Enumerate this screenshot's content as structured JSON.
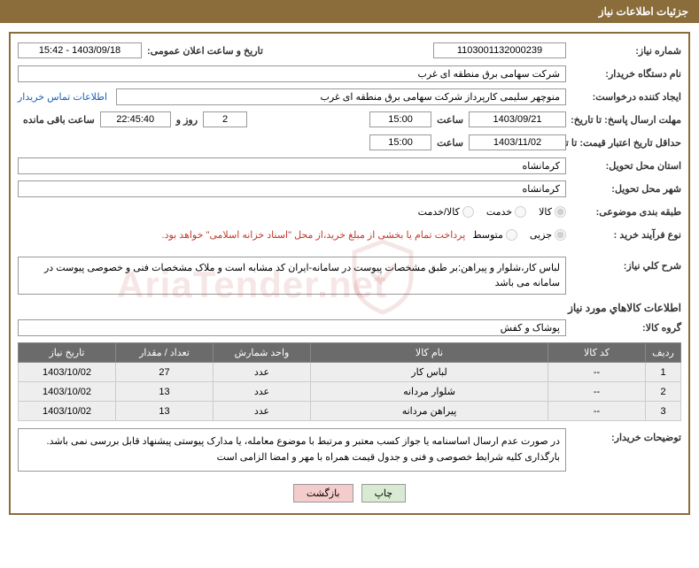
{
  "header": {
    "title": "جزئیات اطلاعات نیاز"
  },
  "fields": {
    "need_number_label": "شماره نیاز:",
    "need_number": "1103001132000239",
    "announce_date_label": "تاریخ و ساعت اعلان عمومی:",
    "announce_date": "1403/09/18 - 15:42",
    "buyer_org_label": "نام دستگاه خریدار:",
    "buyer_org": "شرکت سهامی برق منطقه ای غرب",
    "requester_label": "ایجاد کننده درخواست:",
    "requester": "منوچهر  سلیمی کارپرداز شرکت سهامی برق منطقه ای غرب",
    "contact_link": "اطلاعات تماس خریدار",
    "reply_deadline_label": "مهلت ارسال پاسخ: تا تاریخ:",
    "reply_date": "1403/09/21",
    "time_label": "ساعت",
    "reply_time": "15:00",
    "days_remain": "2",
    "days_remain_label": "روز و",
    "hours_remain": "22:45:40",
    "hours_remain_label": "ساعت باقی مانده",
    "price_validity_label": "حداقل تاریخ اعتبار قیمت: تا تاریخ:",
    "price_validity_date": "1403/11/02",
    "price_validity_time": "15:00",
    "delivery_province_label": "استان محل تحویل:",
    "delivery_province": "کرمانشاه",
    "delivery_city_label": "شهر محل تحویل:",
    "delivery_city": "کرمانشاه",
    "category_label": "طبقه بندی موضوعی:",
    "radio_goods": "کالا",
    "radio_service": "خدمت",
    "radio_goods_service": "کالا/خدمت",
    "purchase_type_label": "نوع فرآیند خرید :",
    "radio_minor": "جزیی",
    "radio_medium": "متوسط",
    "purchase_note": "پرداخت تمام یا بخشی از مبلغ خرید،از محل \"اسناد خزانه اسلامی\" خواهد بود.",
    "need_desc_label": "شرح کلي نیاز:",
    "need_desc": "لباس کار،شلوار و پیراهن:بر طبق مشخصات پیوست در سامانه-ایران کد مشابه است و ملاک مشخصات فنی و خصوصی پیوست در سامانه می باشد",
    "items_section": "اطلاعات کالاهاي مورد نیاز",
    "goods_group_label": "گروه کالا:",
    "goods_group": "پوشاک و کفش",
    "buyer_notes_label": "توضیحات خریدار:",
    "buyer_notes": "در صورت عدم ارسال اساسنامه یا جواز کسب معتبر و مرتبط با موضوع معامله،  یا مدارک پیوستی پیشنهاد قابل بررسی نمی باشد.\nبارگذاری کلیه شرایط خصوصی و فنی و جدول قیمت همراه با مهر و امضا الزامی است"
  },
  "table": {
    "headers": [
      "ردیف",
      "کد کالا",
      "نام کالا",
      "واحد شمارش",
      "تعداد / مقدار",
      "تاریخ نیاز"
    ],
    "rows": [
      [
        "1",
        "--",
        "لباس کار",
        "عدد",
        "27",
        "1403/10/02"
      ],
      [
        "2",
        "--",
        "شلوار مردانه",
        "عدد",
        "13",
        "1403/10/02"
      ],
      [
        "3",
        "--",
        "پیراهن مردانه",
        "عدد",
        "13",
        "1403/10/02"
      ]
    ]
  },
  "buttons": {
    "print": "چاپ",
    "back": "بازگشت"
  },
  "watermark": "AriaTender.net"
}
